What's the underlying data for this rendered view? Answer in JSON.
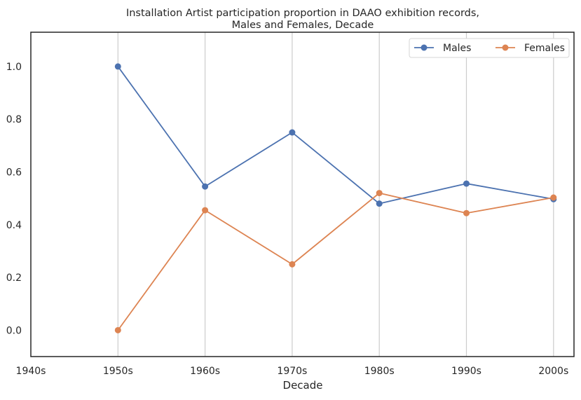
{
  "chart_data": {
    "type": "line",
    "title_line1": "Installation Artist participation proportion in DAAO exhibition records,",
    "title_line2": "Males and Females, Decade",
    "xlabel": "Decade",
    "ylabel": "",
    "categories": [
      "1940s",
      "1950s",
      "1960s",
      "1970s",
      "1980s",
      "1990s",
      "2000s"
    ],
    "yticks": [
      "0.0",
      "0.2",
      "0.4",
      "0.6",
      "0.8",
      "1.0"
    ],
    "ylim": [
      -0.1,
      1.13
    ],
    "grid": "vertical",
    "legend_position": "top-right",
    "series": [
      {
        "name": "Males",
        "color": "#4c72b0",
        "values": [
          null,
          1.0,
          0.545,
          0.75,
          0.48,
          0.556,
          0.497
        ]
      },
      {
        "name": "Females",
        "color": "#dd8452",
        "values": [
          null,
          0.0,
          0.455,
          0.25,
          0.52,
          0.444,
          0.503
        ]
      }
    ]
  }
}
